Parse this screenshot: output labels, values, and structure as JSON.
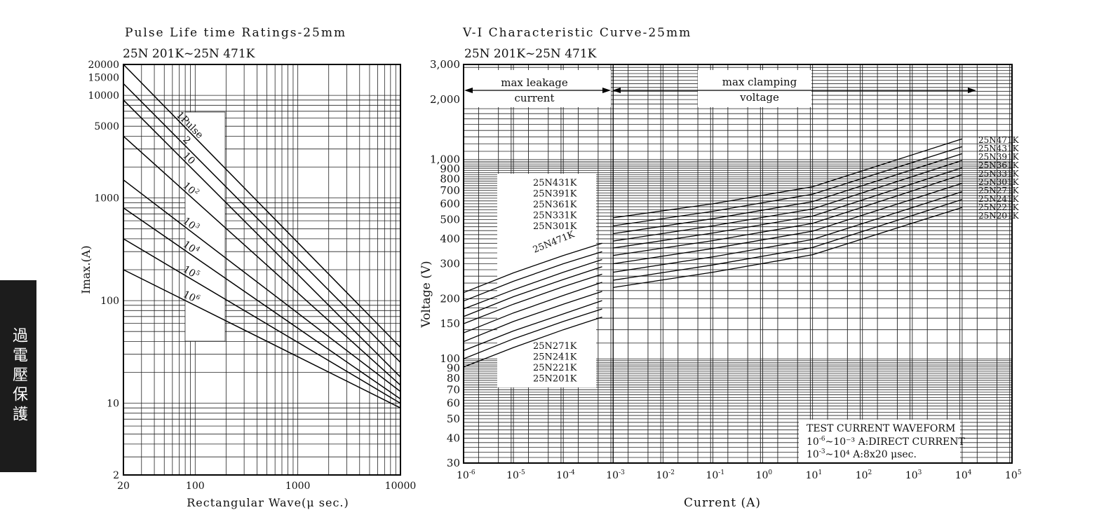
{
  "side_tab": {
    "text": "過電壓保護",
    "background": "#1c1c1c",
    "color": "#ffffff"
  },
  "chart_data": [
    {
      "type": "line",
      "title": "Pulse Life time Ratings-25mm",
      "subtitle": "25N 201K~25N 471K",
      "xlabel": "Rectangular Wave(μ sec.)",
      "ylabel": "Imax.(A)",
      "x_scale": "log",
      "y_scale": "log",
      "xlim": [
        20,
        10000
      ],
      "ylim": [
        2,
        20000
      ],
      "x_ticks": [
        "20",
        "100",
        "1000",
        "10000"
      ],
      "y_ticks": [
        "20000",
        "15000",
        "10000",
        "5000",
        "1000",
        "100",
        "10",
        "2"
      ],
      "grid": true,
      "series": [
        {
          "name": "1Pulse",
          "x": [
            20,
            10000
          ],
          "y": [
            20000,
            35
          ]
        },
        {
          "name": "2",
          "x": [
            20,
            10000
          ],
          "y": [
            13000,
            25
          ]
        },
        {
          "name": "10",
          "x": [
            20,
            10000
          ],
          "y": [
            9000,
            18
          ]
        },
        {
          "name": "10²",
          "x": [
            20,
            10000
          ],
          "y": [
            4000,
            15
          ]
        },
        {
          "name": "10³",
          "x": [
            20,
            10000
          ],
          "y": [
            1500,
            13
          ]
        },
        {
          "name": "10⁴",
          "x": [
            20,
            10000
          ],
          "y": [
            800,
            11
          ]
        },
        {
          "name": "10⁵",
          "x": [
            20,
            10000
          ],
          "y": [
            400,
            10
          ]
        },
        {
          "name": "10⁶",
          "x": [
            20,
            10000
          ],
          "y": [
            200,
            9
          ]
        }
      ]
    },
    {
      "type": "line",
      "title": "V-I Characteristic Curve-25mm",
      "subtitle": "25N 201K~25N 471K",
      "xlabel": "Current (A)",
      "ylabel": "Voltage (V)",
      "x_scale": "log",
      "y_scale": "log",
      "xlim": [
        1e-06,
        100000
      ],
      "ylim": [
        30,
        3000
      ],
      "x_ticks": [
        "10⁻⁶",
        "10⁻⁵",
        "10⁻⁴",
        "10⁻³",
        "10⁻²",
        "10⁻¹",
        "10⁰",
        "10¹",
        "10²",
        "10³",
        "10⁴",
        "10⁵"
      ],
      "y_ticks": [
        "3,000",
        "2,000",
        "1,000",
        "900",
        "800",
        "700",
        "600",
        "500",
        "400",
        "300",
        "200",
        "150",
        "100",
        "90",
        "80",
        "70",
        "60",
        "50",
        "40",
        "30"
      ],
      "grid": true,
      "regions": [
        {
          "label_lines": [
            "max leakage",
            "current"
          ]
        },
        {
          "label_lines": [
            "max clamping",
            "voltage"
          ]
        }
      ],
      "waveform_note": {
        "title": "TEST CURRENT WAVEFORM",
        "line1": "10⁻⁶~10⁻³ A:DIRECT CURRENT",
        "line2": "10⁻³~10⁴ A:8x20 μsec."
      },
      "leakage_labels_top": [
        "25N431K",
        "25N391K",
        "25N361K",
        "25N331K",
        "25N301K"
      ],
      "leakage_label_471": "25N471K",
      "leakage_labels_bottom": [
        "25N271K",
        "25N241K",
        "25N221K",
        "25N201K"
      ],
      "series": [
        {
          "name": "25N471K",
          "leak_y": [
            215,
            270,
            330,
            380
          ],
          "clamp_y": [
            510,
            600,
            730,
            1270
          ]
        },
        {
          "name": "25N431K",
          "leak_y": [
            195,
            245,
            300,
            345
          ],
          "clamp_y": [
            465,
            550,
            670,
            1160
          ]
        },
        {
          "name": "25N391K",
          "leak_y": [
            178,
            222,
            272,
            315
          ],
          "clamp_y": [
            425,
            505,
            615,
            1070
          ]
        },
        {
          "name": "25N361K",
          "leak_y": [
            163,
            205,
            250,
            290
          ],
          "clamp_y": [
            390,
            465,
            565,
            990
          ]
        },
        {
          "name": "25N331K",
          "leak_y": [
            150,
            188,
            230,
            266
          ],
          "clamp_y": [
            360,
            428,
            520,
            910
          ]
        },
        {
          "name": "25N301K",
          "leak_y": [
            135,
            170,
            208,
            242
          ],
          "clamp_y": [
            330,
            392,
            478,
            840
          ]
        },
        {
          "name": "25N271K",
          "leak_y": [
            122,
            154,
            188,
            218
          ],
          "clamp_y": [
            300,
            358,
            437,
            760
          ]
        },
        {
          "name": "25N241K",
          "leak_y": [
            110,
            138,
            168,
            196
          ],
          "clamp_y": [
            272,
            325,
            397,
            690
          ]
        },
        {
          "name": "25N221K",
          "leak_y": [
            100,
            126,
            154,
            178
          ],
          "clamp_y": [
            248,
            296,
            362,
            630
          ]
        },
        {
          "name": "25N201K",
          "leak_y": [
            91,
            114,
            140,
            162
          ],
          "clamp_y": [
            228,
            272,
            333,
            575
          ]
        }
      ]
    }
  ]
}
